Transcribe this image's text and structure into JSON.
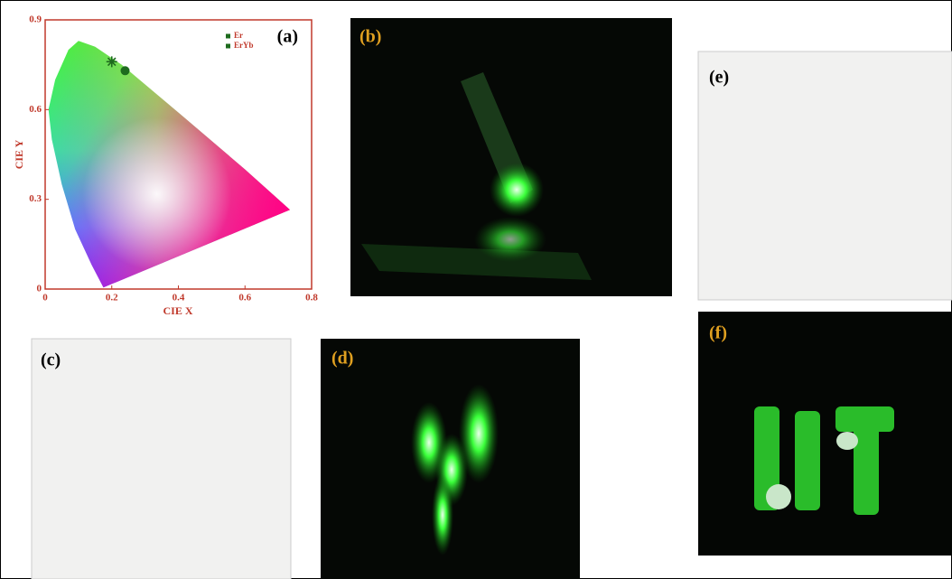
{
  "chart_data": {
    "type": "scatter",
    "panel_label": "(a)",
    "x_label": "CIE X",
    "y_label": "CIE Y",
    "xlim": [
      0,
      0.8
    ],
    "ylim": [
      0,
      0.9
    ],
    "xticks": [
      0,
      0.2,
      0.4,
      0.6,
      0.8
    ],
    "yticks": [
      0,
      0.3,
      0.6,
      0.9
    ],
    "series": [
      {
        "name": "Er",
        "color": "#1e6b1e",
        "marker": "circle",
        "x": [
          0.24
        ],
        "y": [
          0.73
        ]
      },
      {
        "name": "ErYb",
        "color": "#1e6b1e",
        "marker": "star",
        "x": [
          0.2
        ],
        "y": [
          0.76
        ]
      }
    ]
  },
  "panels": [
    {
      "label": "(b)"
    },
    {
      "label": "(c)"
    },
    {
      "label": "(d)"
    },
    {
      "label": "(e)"
    },
    {
      "label": "(f)"
    }
  ]
}
